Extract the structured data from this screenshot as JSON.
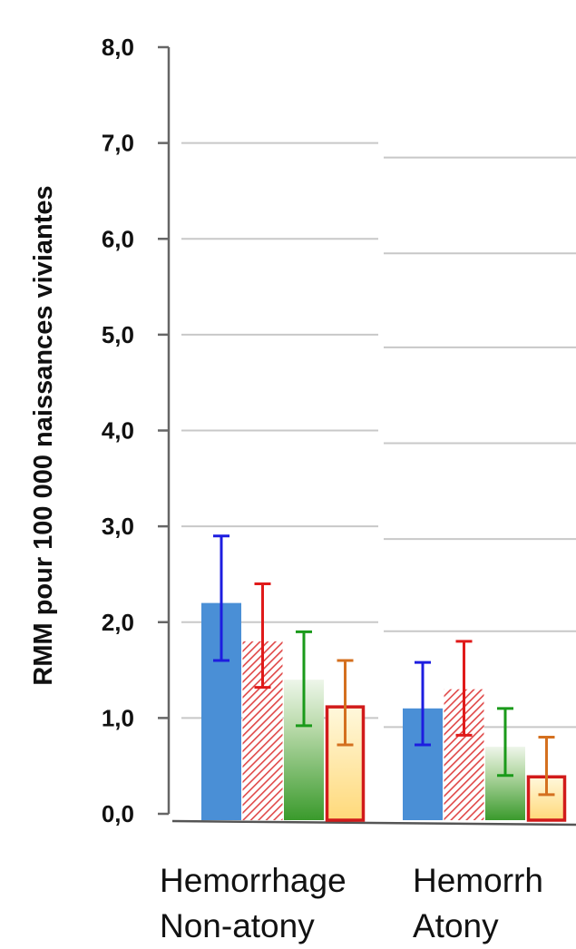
{
  "chart_data": {
    "type": "bar",
    "ylabel": "RMM pour 100 000 naissances viviantes",
    "ylim": [
      0,
      8
    ],
    "y_ticks": [
      "0,0",
      "1,0",
      "2,0",
      "3,0",
      "4,0",
      "5,0",
      "6,0",
      "7,0",
      "8,0"
    ],
    "grid": true,
    "categories": [
      {
        "line1": "Hemorrhage",
        "line2": "Non-atony"
      },
      {
        "line1": "Hemorrh",
        "line2": "Atony"
      }
    ],
    "series_styles": [
      {
        "fill": "#4a8fd6",
        "err": "#1d1de0",
        "pattern": "solid"
      },
      {
        "fill": "#e85a5a",
        "err": "#e01a1a",
        "pattern": "hatch"
      },
      {
        "fill": "#3f9a2e",
        "err": "#1a9a1a",
        "pattern": "gradient-green"
      },
      {
        "fill": "#ffe6a0",
        "err": "#d4701f",
        "pattern": "gradient-yellow",
        "stroke": "#d11a1a"
      }
    ],
    "groups": [
      {
        "values": [
          2.2,
          1.8,
          1.4,
          1.13
        ],
        "err_low": [
          1.6,
          1.32,
          0.92,
          0.72
        ],
        "err_high": [
          2.9,
          2.4,
          1.9,
          1.6
        ]
      },
      {
        "values": [
          1.1,
          1.3,
          0.7,
          0.4
        ],
        "err_low": [
          0.72,
          0.82,
          0.4,
          0.2
        ],
        "err_high": [
          1.58,
          1.8,
          1.1,
          0.8
        ]
      }
    ]
  }
}
